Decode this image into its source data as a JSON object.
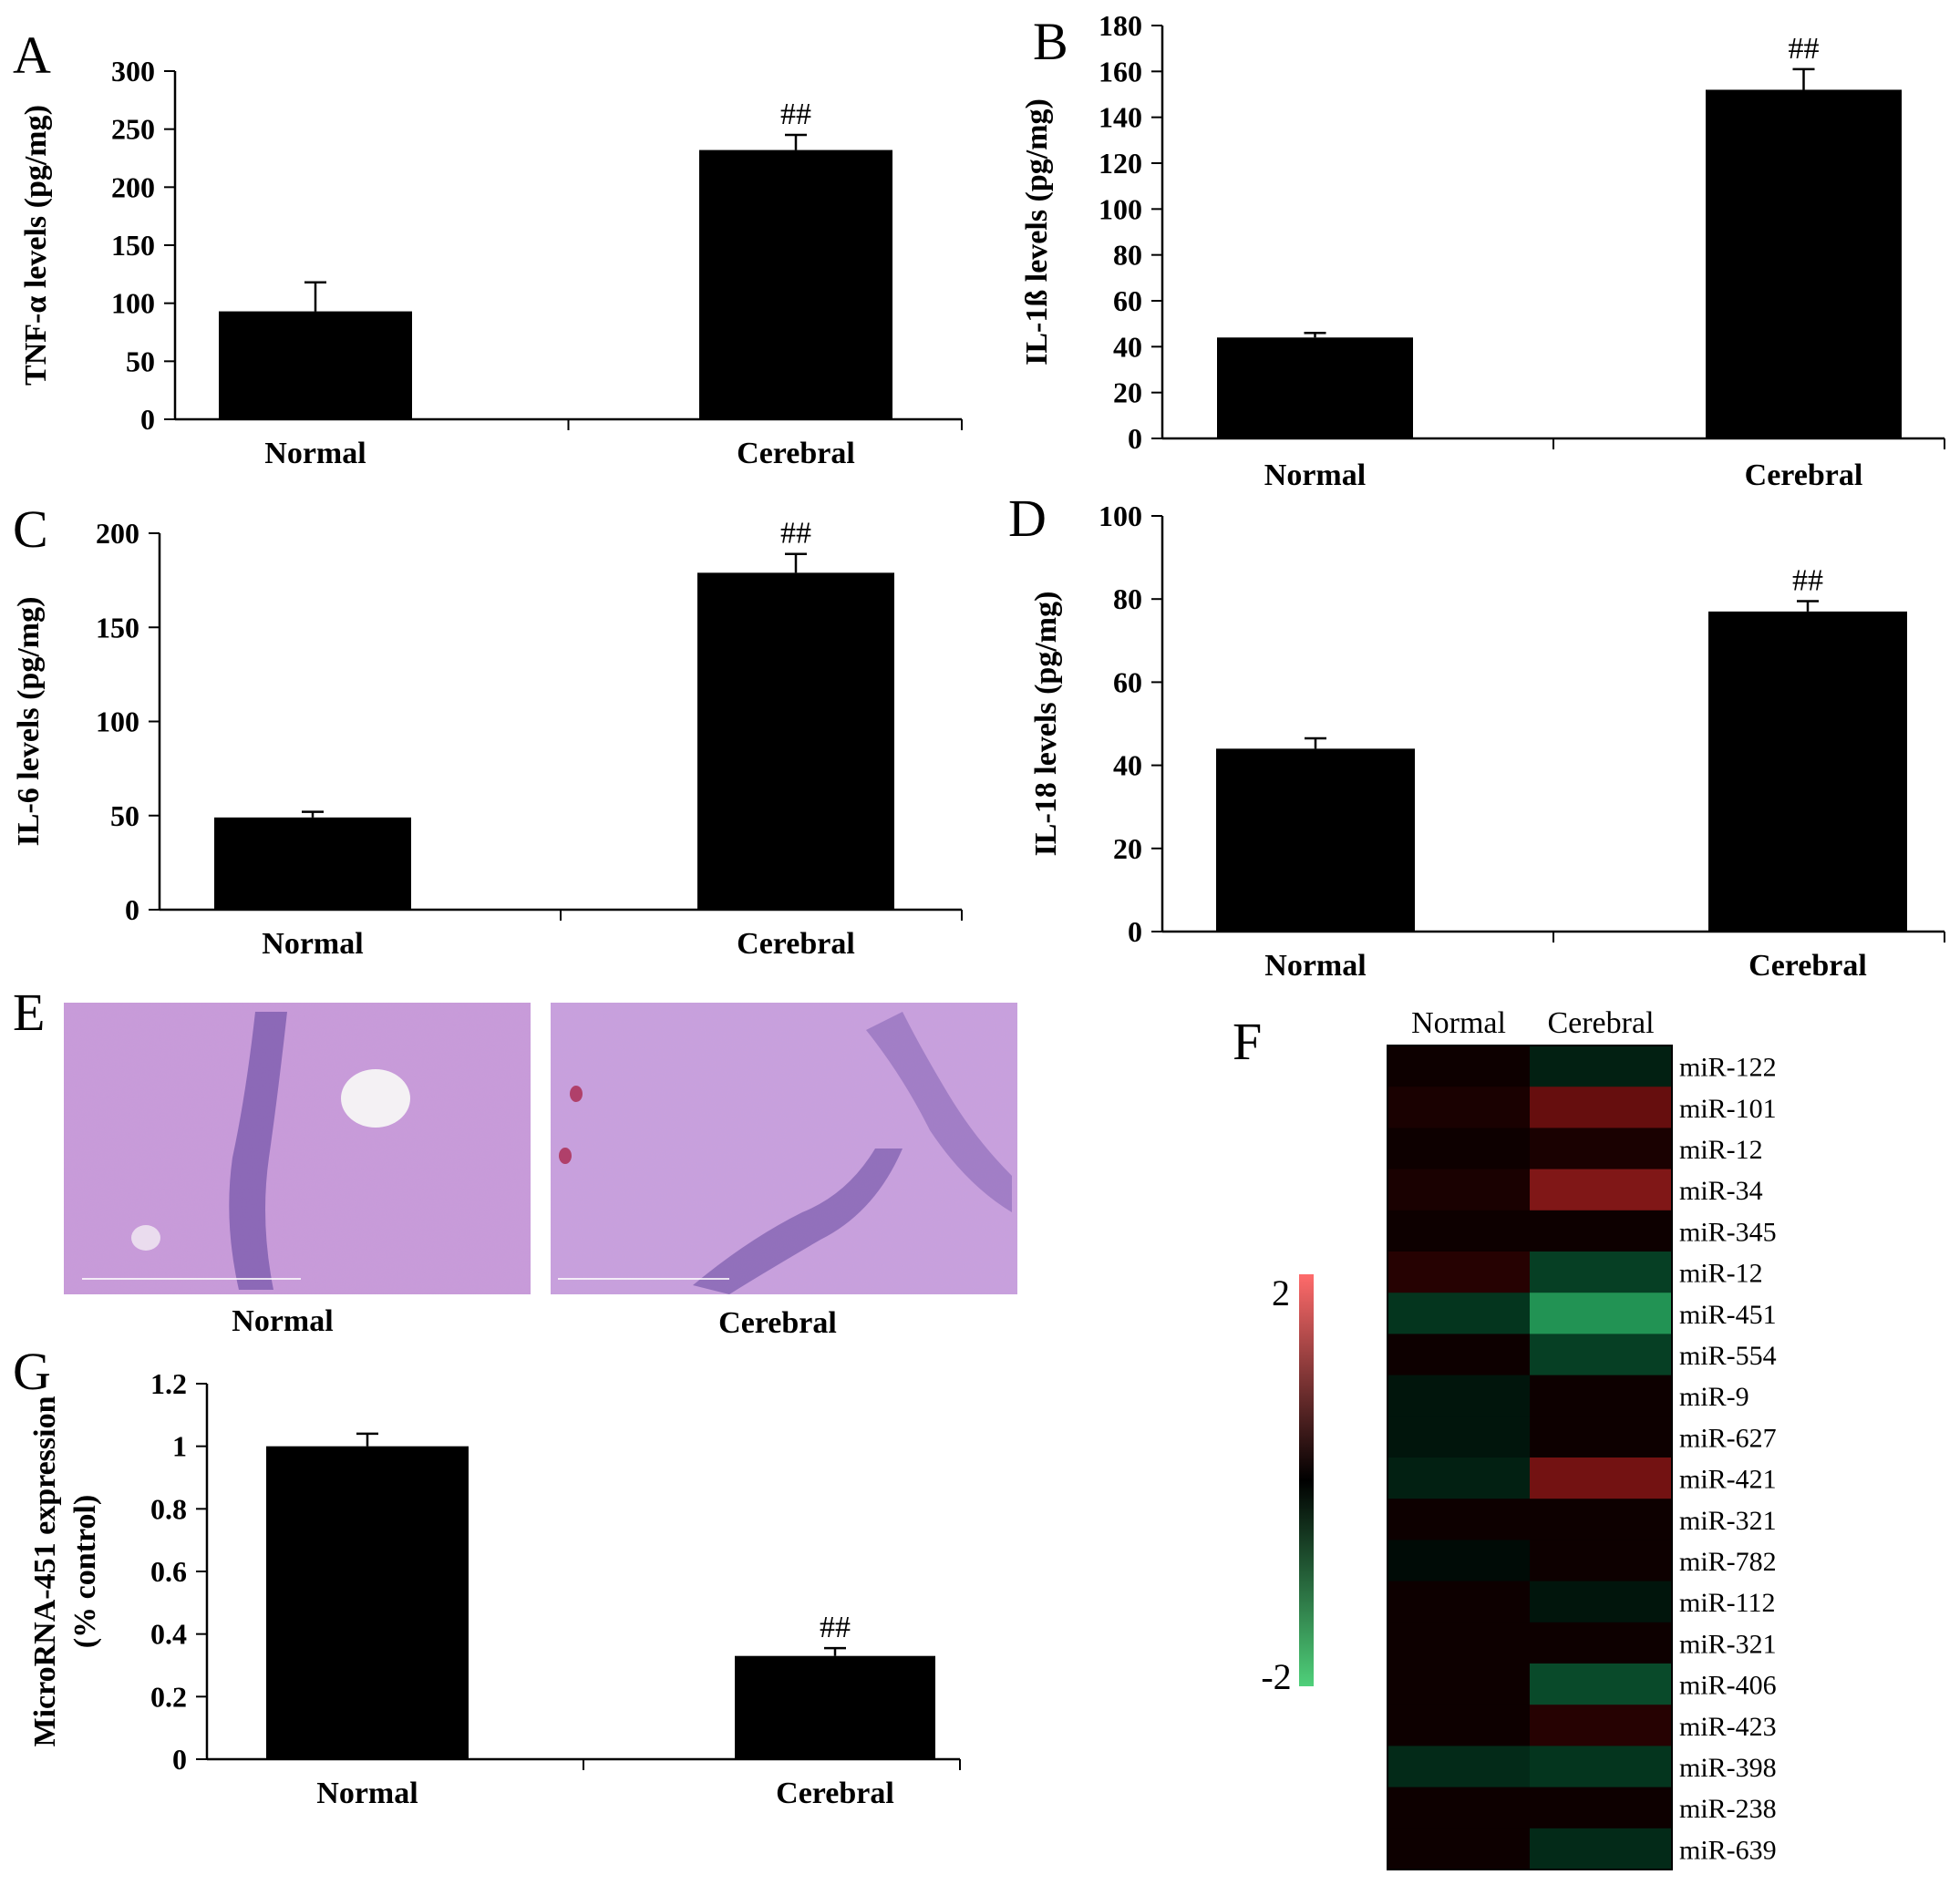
{
  "panel_labels": {
    "A": "A",
    "B": "B",
    "C": "C",
    "D": "D",
    "E": "E",
    "F": "F",
    "G": "G"
  },
  "significance_mark": "##",
  "chart_data": [
    {
      "id": "A",
      "type": "bar",
      "categories": [
        "Normal",
        "Cerebral"
      ],
      "values": [
        93,
        232
      ],
      "errors": [
        25,
        13
      ],
      "annotations": [
        "",
        "##"
      ],
      "ylabel": "TNF-α levels (pg/mg)",
      "ylim": [
        0,
        300
      ],
      "yticks": [
        0,
        50,
        100,
        150,
        200,
        250,
        300
      ],
      "yticklabels": [
        "0",
        "50",
        "100",
        "150",
        "200",
        "250",
        "300"
      ]
    },
    {
      "id": "B",
      "type": "bar",
      "categories": [
        "Normal",
        "Cerebral"
      ],
      "values": [
        44,
        152
      ],
      "errors": [
        2,
        9
      ],
      "annotations": [
        "",
        "##"
      ],
      "ylabel": "IL-1ß levels (pg/mg)",
      "ylim": [
        0,
        180
      ],
      "yticks": [
        0,
        20,
        40,
        60,
        80,
        100,
        120,
        140,
        160,
        180
      ],
      "yticklabels": [
        "0",
        "20",
        "40",
        "60",
        "80",
        "100",
        "120",
        "140",
        "160",
        "180"
      ]
    },
    {
      "id": "C",
      "type": "bar",
      "categories": [
        "Normal",
        "Cerebral"
      ],
      "values": [
        49,
        179
      ],
      "errors": [
        3,
        10
      ],
      "annotations": [
        "",
        "##"
      ],
      "ylabel": "IL-6 levels (pg/mg)",
      "ylim": [
        0,
        200
      ],
      "yticks": [
        0,
        50,
        100,
        150,
        200
      ],
      "yticklabels": [
        "0",
        "50",
        "100",
        "150",
        "200"
      ]
    },
    {
      "id": "D",
      "type": "bar",
      "categories": [
        "Normal",
        "Cerebral"
      ],
      "values": [
        44,
        77
      ],
      "errors": [
        2.5,
        2.5
      ],
      "annotations": [
        "",
        "##"
      ],
      "ylabel": "IL-18 levels (pg/mg)",
      "ylim": [
        0,
        100
      ],
      "yticks": [
        0,
        20,
        40,
        60,
        80,
        100
      ],
      "yticklabels": [
        "0",
        "20",
        "40",
        "60",
        "80",
        "100"
      ]
    },
    {
      "id": "G",
      "type": "bar",
      "categories": [
        "Normal",
        "Cerebral"
      ],
      "values": [
        1.0,
        0.33
      ],
      "errors": [
        0.04,
        0.025
      ],
      "annotations": [
        "",
        "##"
      ],
      "ylabel": "MicroRNA-451 expression (% control)",
      "ylabel_lines": [
        "MicroRNA-451 expression",
        "(% control)"
      ],
      "ylim": [
        0,
        1.2
      ],
      "yticks": [
        0,
        0.2,
        0.4,
        0.6,
        0.8,
        1.0,
        1.2
      ],
      "yticklabels": [
        "0",
        "0.2",
        "0.4",
        "0.6",
        "0.8",
        "1",
        "1.2"
      ]
    },
    {
      "id": "F",
      "type": "heatmap",
      "columns": [
        "Normal",
        "Cerebral"
      ],
      "rows": [
        "miR-122",
        "miR-101",
        "miR-12",
        "miR-34",
        "miR-345",
        "miR-12",
        "miR-451",
        "miR-554",
        "miR-9",
        "miR-627",
        "miR-421",
        "miR-321",
        "miR-782",
        "miR-112",
        "miR-321",
        "miR-406",
        "miR-423",
        "miR-398",
        "miR-238",
        "miR-639"
      ],
      "values": [
        [
          0.1,
          -0.3
        ],
        [
          0.2,
          0.8
        ],
        [
          0.1,
          0.2
        ],
        [
          0.2,
          1.0
        ],
        [
          0.1,
          0.1
        ],
        [
          0.3,
          -0.6
        ],
        [
          -0.5,
          -1.4
        ],
        [
          0.1,
          -0.6
        ],
        [
          -0.2,
          0.1
        ],
        [
          -0.2,
          0.1
        ],
        [
          -0.3,
          0.9
        ],
        [
          0.1,
          0.1
        ],
        [
          -0.1,
          0.1
        ],
        [
          0.1,
          -0.2
        ],
        [
          0.1,
          0.1
        ],
        [
          0.1,
          -0.7
        ],
        [
          0.1,
          0.3
        ],
        [
          -0.4,
          -0.5
        ],
        [
          0.1,
          0.1
        ],
        [
          0.1,
          -0.4
        ]
      ],
      "scale_range": [
        -2,
        2
      ],
      "scale_labels": [
        "2",
        "-2"
      ]
    }
  ],
  "histology": {
    "id": "E",
    "panels": [
      {
        "label": "Normal"
      },
      {
        "label": "Cerebral"
      }
    ]
  }
}
